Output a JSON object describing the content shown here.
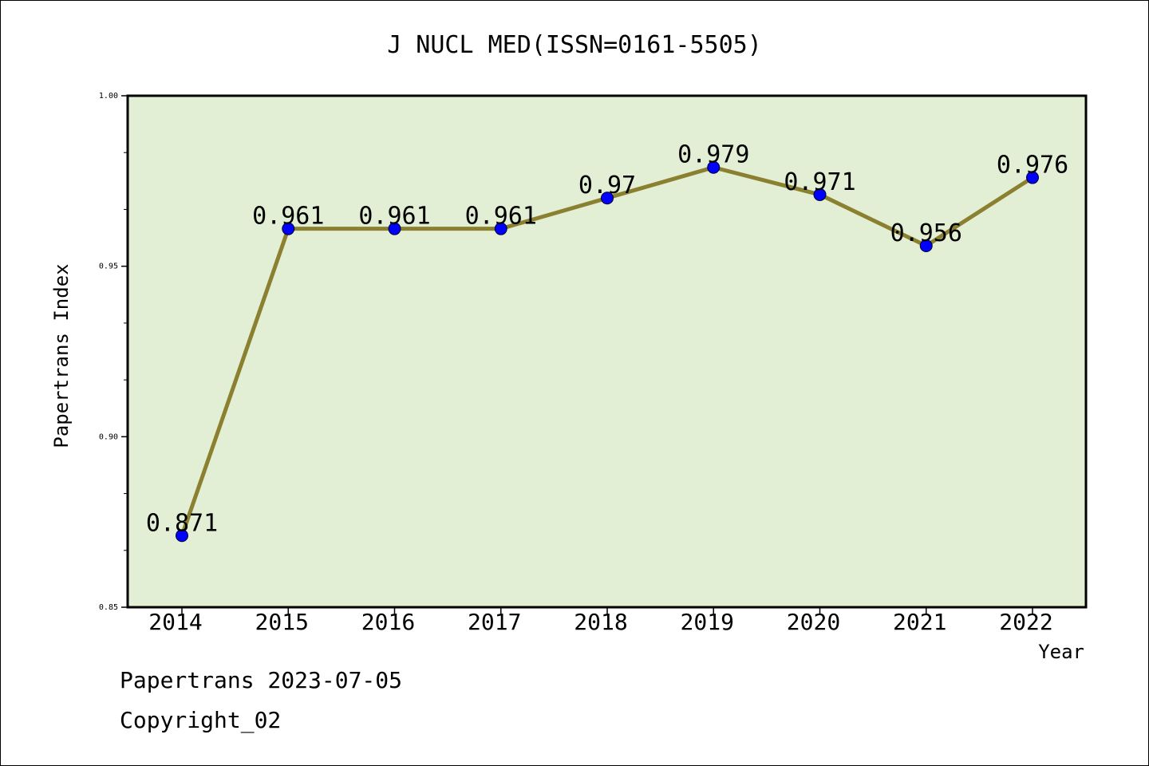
{
  "chart_data": {
    "type": "line",
    "title": "J NUCL MED(ISSN=0161-5505)",
    "xlabel": "Year",
    "ylabel": "Papertrans Index",
    "categories": [
      "2014",
      "2015",
      "2016",
      "2017",
      "2018",
      "2019",
      "2020",
      "2021",
      "2022"
    ],
    "values": [
      0.871,
      0.961,
      0.961,
      0.961,
      0.97,
      0.979,
      0.971,
      0.956,
      0.976
    ],
    "data_labels": [
      "0.871",
      "0.961",
      "0.961",
      "0.961",
      "0.97",
      "0.979",
      "0.971",
      "0.956",
      "0.976"
    ],
    "ylim": [
      0.85,
      1.0
    ],
    "yticks": [
      "0.85",
      "0.90",
      "0.95",
      "1.00"
    ],
    "grid": false,
    "colors": {
      "plot_background": "#e2efd5",
      "line": "#8b8030",
      "marker": "#0000ff"
    }
  },
  "footer": {
    "line1": "Papertrans 2023-07-05",
    "line2": "Copyright_02"
  }
}
